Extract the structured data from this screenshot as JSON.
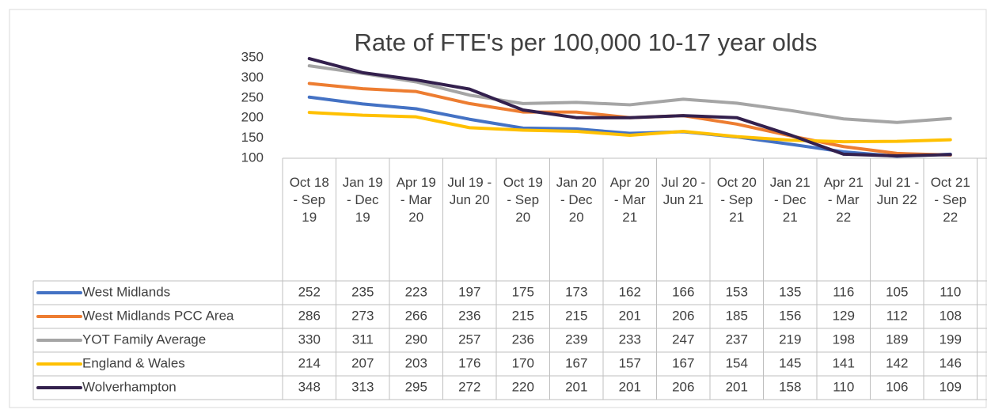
{
  "chart_data": {
    "type": "line",
    "title": "Rate of FTE's per 100,000 10-17 year olds",
    "categories": [
      "Oct 18 - Sep 19",
      "Jan 19 - Dec 19",
      "Apr 19 - Mar 20",
      "Jul 19 - Jun 20",
      "Oct 19 - Sep 20",
      "Jan 20 - Dec 20",
      "Apr 20 - Mar 21",
      "Jul 20 - Jun 21",
      "Oct 20 - Sep 21",
      "Jan 21 - Dec 21",
      "Apr 21 - Mar 22",
      "Jul 21 - Jun 22",
      "Oct 21 - Sep 22"
    ],
    "series": [
      {
        "name": "West Midlands",
        "color": "#4472c4",
        "values": [
          252,
          235,
          223,
          197,
          175,
          173,
          162,
          166,
          153,
          135,
          116,
          105,
          110
        ]
      },
      {
        "name": "West Midlands PCC Area",
        "color": "#ed7d31",
        "values": [
          286,
          273,
          266,
          236,
          215,
          215,
          201,
          206,
          185,
          156,
          129,
          112,
          108
        ]
      },
      {
        "name": "YOT Family Average",
        "color": "#a5a5a5",
        "values": [
          330,
          311,
          290,
          257,
          236,
          239,
          233,
          247,
          237,
          219,
          198,
          189,
          199
        ]
      },
      {
        "name": "England & Wales",
        "color": "#ffc000",
        "values": [
          214,
          207,
          203,
          176,
          170,
          167,
          157,
          167,
          154,
          145,
          141,
          142,
          146
        ]
      },
      {
        "name": "Wolverhampton",
        "color": "#33204d",
        "values": [
          348,
          313,
          295,
          272,
          220,
          201,
          201,
          206,
          201,
          158,
          110,
          106,
          109
        ]
      }
    ],
    "ylim": [
      100,
      350
    ],
    "yticks": [
      100,
      150,
      200,
      250,
      300,
      350
    ]
  }
}
